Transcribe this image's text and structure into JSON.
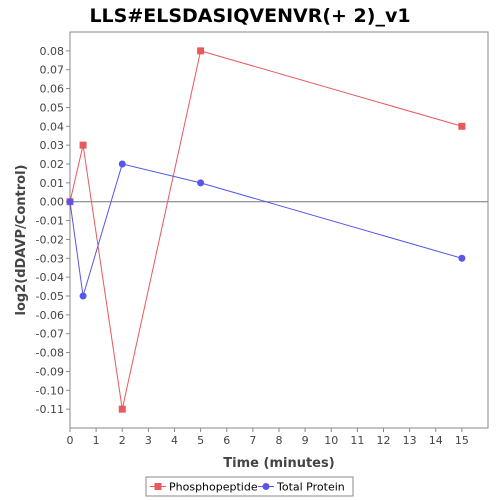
{
  "chart_data": {
    "type": "line",
    "title": "LLS#ELSDASIQVENVR(+ 2)_v1",
    "xlabel": "Time (minutes)",
    "ylabel": "log2(dDAVP/Control)",
    "xlim": [
      0,
      16
    ],
    "ylim": [
      -0.12,
      0.09
    ],
    "x_ticks": [
      0,
      1,
      2,
      3,
      4,
      5,
      6,
      7,
      8,
      9,
      10,
      11,
      12,
      13,
      14,
      15
    ],
    "y_ticks": [
      0.08,
      0.07,
      0.06,
      0.05,
      0.04,
      0.03,
      0.02,
      0.01,
      0.0,
      -0.01,
      -0.02,
      -0.03,
      -0.04,
      -0.05,
      -0.06,
      -0.07,
      -0.08,
      -0.09,
      -0.1,
      -0.11
    ],
    "grid": false,
    "zero_line": true,
    "legend_position": "bottom",
    "series": [
      {
        "name": "Phosphopeptide",
        "color": "#e8585c",
        "marker": "square",
        "x": [
          0,
          0.5,
          2,
          5,
          15
        ],
        "y": [
          0.0,
          0.03,
          -0.11,
          0.08,
          0.04
        ]
      },
      {
        "name": "Total Protein",
        "color": "#5656e8",
        "marker": "circle",
        "x": [
          0,
          0.5,
          2,
          5,
          15
        ],
        "y": [
          0.0,
          -0.05,
          0.02,
          0.01,
          -0.03
        ]
      }
    ]
  }
}
